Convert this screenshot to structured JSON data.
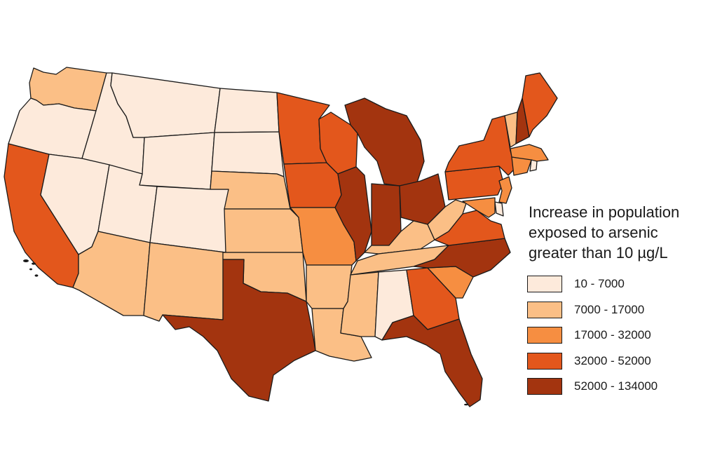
{
  "legend": {
    "title_lines": [
      "Increase in population",
      "exposed to arsenic",
      "greater than 10 µg/L"
    ],
    "classes": [
      {
        "label": "10 - 7000",
        "color": "#fdeadb"
      },
      {
        "label": "7000 - 17000",
        "color": "#fbbf86"
      },
      {
        "label": "17000 - 32000",
        "color": "#f68e41"
      },
      {
        "label": "32000 - 52000",
        "color": "#e3571c"
      },
      {
        "label": "52000 - 134000",
        "color": "#a3340f"
      }
    ]
  },
  "states": [
    {
      "id": "WA",
      "class": 1
    },
    {
      "id": "OR",
      "class": 0
    },
    {
      "id": "CA",
      "class": 3
    },
    {
      "id": "ID",
      "class": 0
    },
    {
      "id": "NV",
      "class": 0
    },
    {
      "id": "MT",
      "class": 0
    },
    {
      "id": "WY",
      "class": 0
    },
    {
      "id": "UT",
      "class": 0
    },
    {
      "id": "AZ",
      "class": 1
    },
    {
      "id": "CO",
      "class": 0
    },
    {
      "id": "NM",
      "class": 1
    },
    {
      "id": "ND",
      "class": 0
    },
    {
      "id": "SD",
      "class": 0
    },
    {
      "id": "NE",
      "class": 1
    },
    {
      "id": "KS",
      "class": 1
    },
    {
      "id": "OK",
      "class": 1
    },
    {
      "id": "TX",
      "class": 4
    },
    {
      "id": "MN",
      "class": 3
    },
    {
      "id": "IA",
      "class": 3
    },
    {
      "id": "MO",
      "class": 2
    },
    {
      "id": "AR",
      "class": 1
    },
    {
      "id": "LA",
      "class": 1
    },
    {
      "id": "WI",
      "class": 3
    },
    {
      "id": "IL",
      "class": 4
    },
    {
      "id": "MI",
      "class": 4
    },
    {
      "id": "IN",
      "class": 4
    },
    {
      "id": "OH",
      "class": 4
    },
    {
      "id": "KY",
      "class": 1
    },
    {
      "id": "TN",
      "class": 1
    },
    {
      "id": "MS",
      "class": 1
    },
    {
      "id": "AL",
      "class": 0
    },
    {
      "id": "GA",
      "class": 3
    },
    {
      "id": "FL",
      "class": 4
    },
    {
      "id": "SC",
      "class": 2
    },
    {
      "id": "NC",
      "class": 4
    },
    {
      "id": "VA",
      "class": 3
    },
    {
      "id": "WV",
      "class": 1
    },
    {
      "id": "PA",
      "class": 3
    },
    {
      "id": "NY",
      "class": 3
    },
    {
      "id": "VT",
      "class": 1
    },
    {
      "id": "NH",
      "class": 4
    },
    {
      "id": "ME",
      "class": 3
    },
    {
      "id": "MA",
      "class": 2
    },
    {
      "id": "CT",
      "class": 2
    },
    {
      "id": "RI",
      "class": 0
    },
    {
      "id": "NJ",
      "class": 2
    },
    {
      "id": "DE",
      "class": 0
    },
    {
      "id": "MD",
      "class": 2
    }
  ]
}
